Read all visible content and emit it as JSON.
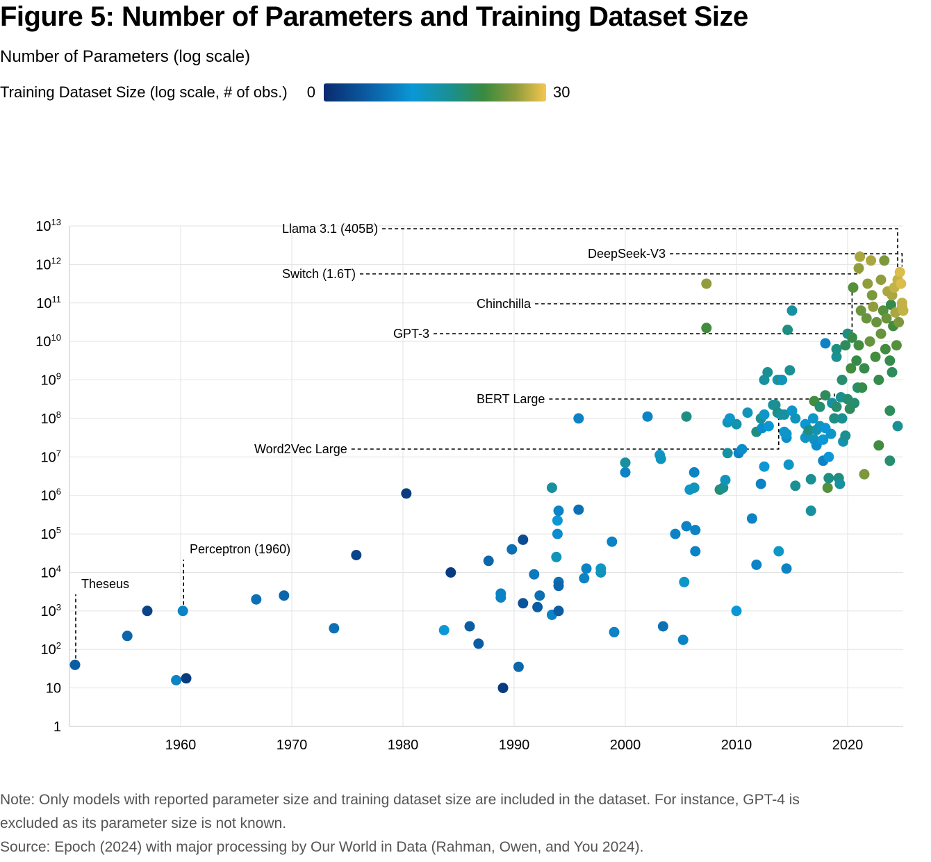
{
  "figure": {
    "title": "Figure 5: Number of Parameters and Training Dataset Size",
    "y_title": "Number of Parameters (log scale)",
    "legend_label": "Training Dataset Size (log scale, # of obs.)",
    "legend_min": "0",
    "legend_max": "30",
    "note": "Note: Only models with reported parameter size and training dataset size are included in the dataset. For instance, GPT-4 is",
    "note_cont": "excluded as its parameter size is not known.",
    "source": "Source: Epoch (2024) with major processing by Our World in Data (Rahman, Owen, and You 2024)."
  },
  "chart_data": {
    "type": "scatter",
    "x_ticks": [
      "1960",
      "1970",
      "1980",
      "1990",
      "2000",
      "2010",
      "2020"
    ],
    "x_tick_values": [
      1960,
      1970,
      1980,
      1990,
      2000,
      2010,
      2020
    ],
    "y_ticks": [
      {
        "exp": 0,
        "base": "1",
        "sup": ""
      },
      {
        "exp": 1,
        "base": "10",
        "sup": ""
      },
      {
        "exp": 2,
        "base": "10",
        "sup": "2"
      },
      {
        "exp": 3,
        "base": "10",
        "sup": "3"
      },
      {
        "exp": 4,
        "base": "10",
        "sup": "4"
      },
      {
        "exp": 5,
        "base": "10",
        "sup": "5"
      },
      {
        "exp": 6,
        "base": "10",
        "sup": "6"
      },
      {
        "exp": 7,
        "base": "10",
        "sup": "7"
      },
      {
        "exp": 8,
        "base": "10",
        "sup": "8"
      },
      {
        "exp": 9,
        "base": "10",
        "sup": "9"
      },
      {
        "exp": 10,
        "base": "10",
        "sup": "10"
      },
      {
        "exp": 11,
        "base": "10",
        "sup": "11"
      },
      {
        "exp": 12,
        "base": "10",
        "sup": "12"
      },
      {
        "exp": 13,
        "base": "10",
        "sup": "13"
      }
    ],
    "xlim": [
      1950,
      2025
    ],
    "ylim_log10": [
      0,
      13
    ],
    "y_scale": "log",
    "color_scale_log10": [
      0,
      30
    ],
    "grid": true,
    "annotations": [
      {
        "label": "Theseus",
        "x": 1950.5,
        "log10_y": 1.6
      },
      {
        "label": "Perceptron (1960)",
        "x": 1960.2,
        "log10_y": 3.0
      },
      {
        "label": "Word2Vec Large",
        "x": 2013.8,
        "log10_y": 8.1
      },
      {
        "label": "BERT Large",
        "x": 2018.8,
        "log10_y": 8.5
      },
      {
        "label": "GPT-3",
        "x": 2020.4,
        "log10_y": 11.2
      },
      {
        "label": "Chinchilla",
        "x": 2022.3,
        "log10_y": 10.8
      },
      {
        "label": "Switch (1.6T)",
        "x": 2021.1,
        "log10_y": 12.2
      },
      {
        "label": "DeepSeek-V3",
        "x": 2024.9,
        "log10_y": 11.8
      },
      {
        "label": "Llama 3.1 (405B)",
        "x": 2024.5,
        "log10_y": 11.6
      }
    ],
    "points": [
      [
        1950.5,
        1.6,
        6
      ],
      [
        1955.2,
        2.35,
        7
      ],
      [
        1957.0,
        3.0,
        3
      ],
      [
        1959.6,
        1.2,
        10
      ],
      [
        1960.2,
        3.0,
        10
      ],
      [
        1960.5,
        1.25,
        2
      ],
      [
        1966.8,
        3.3,
        8
      ],
      [
        1969.3,
        3.4,
        7
      ],
      [
        1973.8,
        2.55,
        8
      ],
      [
        1975.8,
        4.45,
        3
      ],
      [
        1980.3,
        6.05,
        2
      ],
      [
        1983.7,
        2.5,
        12
      ],
      [
        1984.3,
        4.0,
        2
      ],
      [
        1986.0,
        2.6,
        6
      ],
      [
        1986.8,
        2.15,
        6
      ],
      [
        1987.7,
        4.3,
        7
      ],
      [
        1988.8,
        3.45,
        10
      ],
      [
        1988.8,
        3.35,
        10
      ],
      [
        1989.0,
        1.0,
        2
      ],
      [
        1989.8,
        4.6,
        8
      ],
      [
        1990.4,
        1.55,
        7
      ],
      [
        1990.8,
        3.2,
        5
      ],
      [
        1990.8,
        4.85,
        4
      ],
      [
        1991.8,
        3.95,
        9
      ],
      [
        1992.1,
        3.1,
        6
      ],
      [
        1992.3,
        3.4,
        8
      ],
      [
        1993.4,
        2.9,
        10
      ],
      [
        1993.4,
        6.2,
        16
      ],
      [
        1993.8,
        4.4,
        14
      ],
      [
        1993.9,
        5.0,
        11
      ],
      [
        1993.9,
        5.35,
        12
      ],
      [
        1994.0,
        5.6,
        10
      ],
      [
        1994.0,
        3.75,
        8
      ],
      [
        1994.0,
        3.65,
        7
      ],
      [
        1994.0,
        3.0,
        6
      ],
      [
        1995.8,
        5.63,
        8
      ],
      [
        1995.8,
        8.0,
        10
      ],
      [
        1996.3,
        3.85,
        10
      ],
      [
        1996.5,
        4.1,
        10
      ],
      [
        1997.8,
        4.1,
        13
      ],
      [
        1997.8,
        4.0,
        14
      ],
      [
        1998.8,
        4.8,
        10
      ],
      [
        1999.0,
        2.45,
        10
      ],
      [
        2000.0,
        6.6,
        10
      ],
      [
        2000.0,
        6.85,
        16
      ],
      [
        2002.0,
        8.05,
        10
      ],
      [
        2003.1,
        7.05,
        13
      ],
      [
        2003.2,
        6.95,
        14
      ],
      [
        2003.4,
        2.6,
        8
      ],
      [
        2004.5,
        5.0,
        10
      ],
      [
        2005.2,
        2.25,
        10
      ],
      [
        2005.3,
        3.75,
        13
      ],
      [
        2005.5,
        8.05,
        18
      ],
      [
        2005.5,
        5.2,
        10
      ],
      [
        2005.8,
        6.15,
        13
      ],
      [
        2006.2,
        6.2,
        14
      ],
      [
        2006.2,
        6.6,
        10
      ],
      [
        2006.3,
        5.1,
        10
      ],
      [
        2006.3,
        4.55,
        10
      ],
      [
        2007.3,
        11.5,
        26
      ],
      [
        2007.3,
        10.35,
        22
      ],
      [
        2008.5,
        6.15,
        19
      ],
      [
        2008.8,
        6.2,
        17
      ],
      [
        2009.0,
        6.4,
        14
      ],
      [
        2009.2,
        7.1,
        16
      ],
      [
        2009.2,
        7.9,
        14
      ],
      [
        2009.4,
        8.0,
        13
      ],
      [
        2010.0,
        3.0,
        12
      ],
      [
        2010.0,
        7.85,
        15
      ],
      [
        2010.2,
        7.1,
        10
      ],
      [
        2010.5,
        7.2,
        11
      ],
      [
        2011.0,
        8.15,
        14
      ],
      [
        2011.4,
        5.4,
        10
      ],
      [
        2011.8,
        7.65,
        18
      ],
      [
        2011.8,
        4.2,
        10
      ],
      [
        2012.2,
        6.3,
        10
      ],
      [
        2012.2,
        8.0,
        17
      ],
      [
        2012.3,
        7.75,
        11
      ],
      [
        2012.5,
        8.1,
        13
      ],
      [
        2012.5,
        6.75,
        12
      ],
      [
        2012.5,
        9.0,
        16
      ],
      [
        2012.8,
        9.2,
        17
      ],
      [
        2012.9,
        7.8,
        12
      ],
      [
        2013.3,
        8.35,
        16
      ],
      [
        2013.5,
        8.35,
        17
      ],
      [
        2013.7,
        9.0,
        14
      ],
      [
        2013.7,
        8.15,
        18
      ],
      [
        2013.8,
        4.55,
        13
      ],
      [
        2014.0,
        8.1,
        16
      ],
      [
        2014.0,
        9.0,
        20
      ],
      [
        2014.1,
        9.0,
        14
      ],
      [
        2014.3,
        7.65,
        12
      ],
      [
        2014.3,
        8.1,
        16
      ],
      [
        2014.5,
        7.5,
        11
      ],
      [
        2014.5,
        4.1,
        10
      ],
      [
        2014.5,
        7.6,
        13
      ],
      [
        2014.6,
        10.3,
        18
      ],
      [
        2014.7,
        6.8,
        13
      ],
      [
        2014.8,
        9.25,
        17
      ],
      [
        2015.0,
        8.2,
        13
      ],
      [
        2015.0,
        10.8,
        16
      ],
      [
        2015.3,
        6.25,
        17
      ],
      [
        2015.3,
        8.0,
        14
      ],
      [
        2016.2,
        7.85,
        12
      ],
      [
        2016.2,
        7.5,
        13
      ],
      [
        2016.4,
        7.6,
        14
      ],
      [
        2016.5,
        7.7,
        18
      ],
      [
        2016.7,
        5.6,
        16
      ],
      [
        2016.7,
        6.42,
        17
      ],
      [
        2016.9,
        8.0,
        13
      ],
      [
        2017.0,
        8.45,
        22
      ],
      [
        2017.0,
        7.45,
        14
      ],
      [
        2017.2,
        7.7,
        15
      ],
      [
        2017.2,
        7.3,
        11
      ],
      [
        2017.5,
        8.3,
        19
      ],
      [
        2017.5,
        7.8,
        14
      ],
      [
        2017.8,
        7.45,
        12
      ],
      [
        2017.8,
        6.9,
        10
      ],
      [
        2018.0,
        8.6,
        20
      ],
      [
        2018.0,
        7.75,
        12
      ],
      [
        2018.0,
        9.95,
        10
      ],
      [
        2018.2,
        6.2,
        23
      ],
      [
        2018.3,
        6.45,
        18
      ],
      [
        2018.3,
        7.0,
        12
      ],
      [
        2018.5,
        7.6,
        13
      ],
      [
        2018.6,
        8.4,
        16
      ],
      [
        2018.8,
        8.0,
        18
      ],
      [
        2019.0,
        8.3,
        19
      ],
      [
        2019.0,
        9.6,
        17
      ],
      [
        2019.0,
        9.8,
        18
      ],
      [
        2019.2,
        6.45,
        18
      ],
      [
        2019.3,
        6.3,
        16
      ],
      [
        2019.4,
        8.55,
        17
      ],
      [
        2019.5,
        8.0,
        17
      ],
      [
        2019.5,
        9.0,
        19
      ],
      [
        2019.6,
        7.4,
        15
      ],
      [
        2019.8,
        7.55,
        17
      ],
      [
        2019.8,
        9.9,
        20
      ],
      [
        2020.0,
        8.5,
        19
      ],
      [
        2020.0,
        10.2,
        18
      ],
      [
        2020.2,
        8.25,
        20
      ],
      [
        2020.3,
        9.3,
        22
      ],
      [
        2020.4,
        10.1,
        21
      ],
      [
        2020.5,
        11.4,
        23
      ],
      [
        2020.6,
        8.4,
        19
      ],
      [
        2020.8,
        9.5,
        21
      ],
      [
        2020.9,
        8.8,
        19
      ],
      [
        2021.0,
        9.9,
        22
      ],
      [
        2021.0,
        11.9,
        26
      ],
      [
        2021.1,
        12.2,
        27
      ],
      [
        2021.2,
        10.8,
        24
      ],
      [
        2021.3,
        8.8,
        21
      ],
      [
        2021.5,
        6.55,
        25
      ],
      [
        2021.5,
        9.3,
        21
      ],
      [
        2021.7,
        10.6,
        24
      ],
      [
        2021.8,
        11.5,
        26
      ],
      [
        2022.0,
        10.0,
        24
      ],
      [
        2022.1,
        12.1,
        27
      ],
      [
        2022.2,
        11.2,
        25
      ],
      [
        2022.3,
        10.9,
        26
      ],
      [
        2022.5,
        9.6,
        22
      ],
      [
        2022.6,
        10.5,
        24
      ],
      [
        2022.8,
        7.3,
        22
      ],
      [
        2022.8,
        9.0,
        21
      ],
      [
        2023.0,
        10.2,
        24
      ],
      [
        2023.0,
        11.6,
        26
      ],
      [
        2023.2,
        10.8,
        23
      ],
      [
        2023.3,
        12.1,
        25
      ],
      [
        2023.4,
        9.8,
        22
      ],
      [
        2023.5,
        10.6,
        24
      ],
      [
        2023.6,
        11.3,
        27
      ],
      [
        2023.8,
        8.2,
        20
      ],
      [
        2023.8,
        9.5,
        21
      ],
      [
        2023.8,
        6.9,
        19
      ],
      [
        2023.9,
        10.95,
        21
      ],
      [
        2024.0,
        11.2,
        27
      ],
      [
        2024.0,
        9.2,
        20
      ],
      [
        2024.1,
        10.4,
        22
      ],
      [
        2024.2,
        11.4,
        28
      ],
      [
        2024.3,
        10.75,
        27
      ],
      [
        2024.4,
        9.9,
        23
      ],
      [
        2024.5,
        11.6,
        28
      ],
      [
        2024.5,
        7.8,
        17
      ],
      [
        2024.6,
        10.5,
        25
      ],
      [
        2024.7,
        11.8,
        29
      ],
      [
        2024.8,
        11.5,
        29
      ],
      [
        2024.9,
        10.9,
        28
      ],
      [
        2024.9,
        11.0,
        28
      ],
      [
        2025.0,
        10.8,
        28
      ]
    ]
  }
}
